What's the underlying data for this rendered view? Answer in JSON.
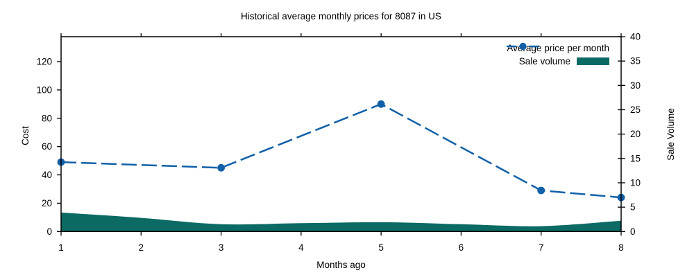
{
  "chart_data": {
    "type": "line",
    "title": "Historical average monthly prices for 8087 in US",
    "xlabel": "Months ago",
    "ylabel_left": "Cost",
    "ylabel_right": "Sale Volume",
    "x_ticks": [
      1,
      2,
      3,
      4,
      5,
      6,
      7,
      8
    ],
    "y_left_ticks": [
      0,
      20,
      40,
      60,
      80,
      100,
      120
    ],
    "y_right_ticks": [
      0,
      5,
      10,
      15,
      20,
      25,
      30,
      35,
      40
    ],
    "xlim": [
      1,
      8
    ],
    "ylim_left": [
      0,
      137.6
    ],
    "ylim_right": [
      0,
      40
    ],
    "grid": false,
    "legend_position": "top-right-inside",
    "series": [
      {
        "name": "Average price per month",
        "type": "line",
        "axis": "left",
        "style": "dashed",
        "marker": "filled-circle",
        "color": "#1160a8",
        "x": [
          1,
          3,
          5,
          7,
          8
        ],
        "values": [
          49,
          45,
          90,
          29,
          24
        ]
      },
      {
        "name": "Sale volume",
        "type": "area",
        "axis": "right",
        "color": "#0b6a63",
        "x": [
          1,
          2,
          3,
          4,
          5,
          6,
          7,
          8
        ],
        "values": [
          3.9,
          2.8,
          1.5,
          1.7,
          1.9,
          1.5,
          1.1,
          2.2
        ]
      }
    ]
  }
}
